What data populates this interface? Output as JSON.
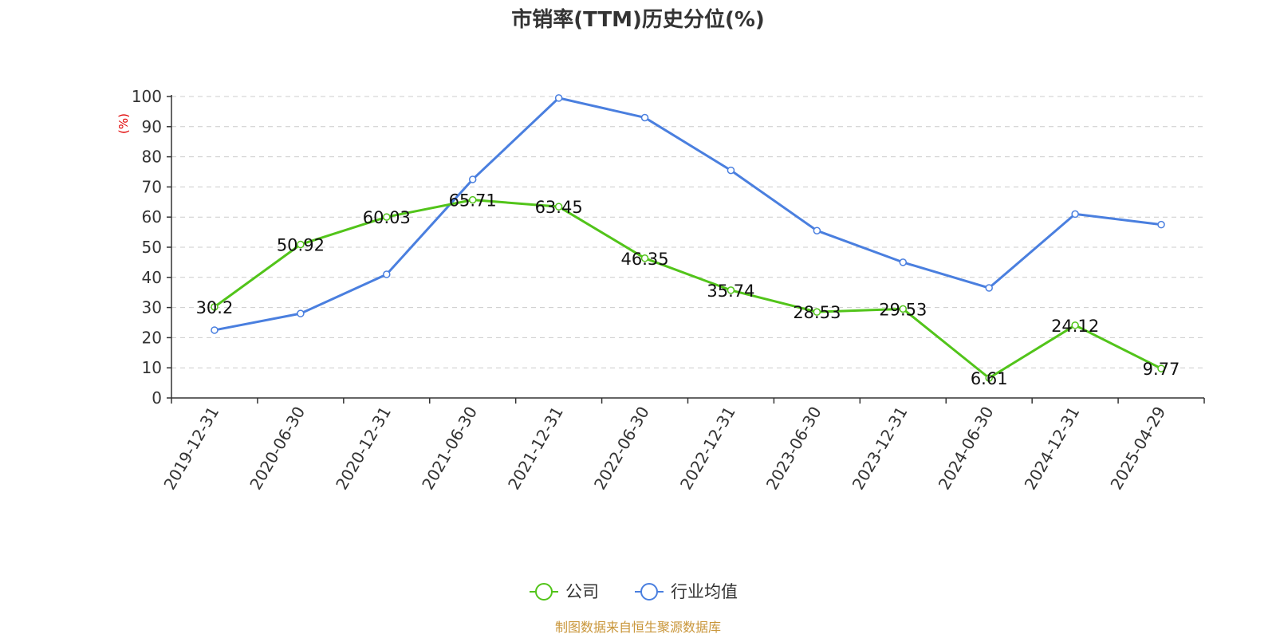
{
  "chart_data": {
    "type": "line",
    "title": "市销率(TTM)历史分位(%)",
    "ylabel": "(%)",
    "ylim": [
      0,
      100
    ],
    "yticks": [
      0,
      10,
      20,
      30,
      40,
      50,
      60,
      70,
      80,
      90,
      100
    ],
    "grid": true,
    "legend_position": "bottom",
    "categories": [
      "2019-12-31",
      "2020-06-30",
      "2020-12-31",
      "2021-06-30",
      "2021-12-31",
      "2022-06-30",
      "2022-12-31",
      "2023-06-30",
      "2023-12-31",
      "2024-06-30",
      "2024-12-31",
      "2025-04-29"
    ],
    "series": [
      {
        "name": "公司",
        "color": "#52c41a",
        "values": [
          30.2,
          50.92,
          60.03,
          65.71,
          63.45,
          46.35,
          35.74,
          28.53,
          29.53,
          6.61,
          24.12,
          9.77
        ],
        "data_labels": [
          "30.2",
          "50.92",
          "60.03",
          "65.71",
          "63.45",
          "46.35",
          "35.74",
          "28.53",
          "29.53",
          "6.61",
          "24.12",
          "9.77"
        ]
      },
      {
        "name": "行业均值",
        "color": "#4a7fdf",
        "values": [
          22.5,
          28,
          41,
          72.5,
          99.5,
          93,
          75.5,
          55.5,
          45,
          36.5,
          61,
          57.5
        ]
      }
    ],
    "source": "制图数据来自恒生聚源数据库"
  }
}
